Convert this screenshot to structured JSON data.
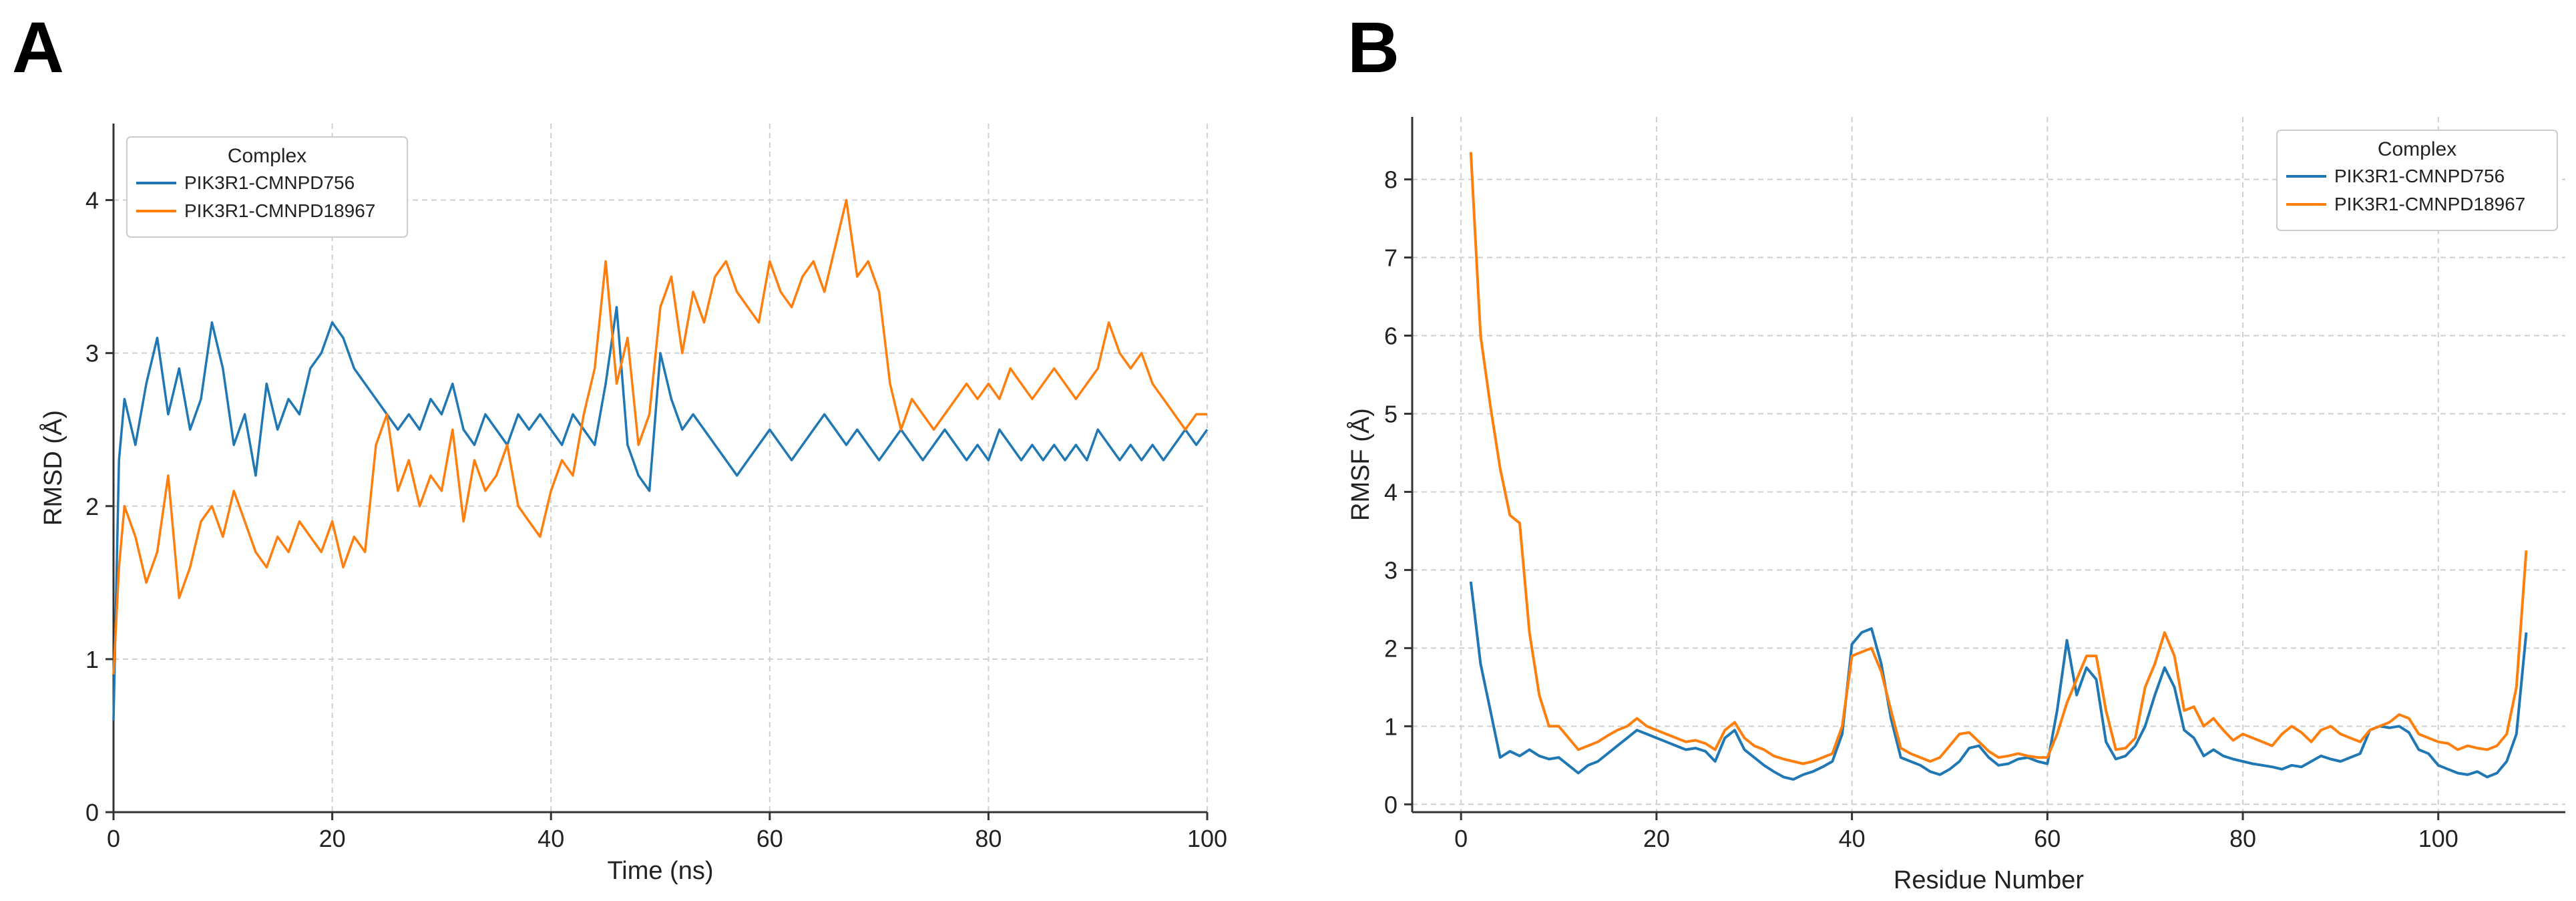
{
  "chart_data": [
    {
      "panel_label": "A",
      "type": "line",
      "title": "",
      "xlabel": "Time (ns)",
      "ylabel": "RMSD (Å)",
      "xlim": [
        0,
        100
      ],
      "ylim": [
        0,
        4.5
      ],
      "xticks": [
        0,
        20,
        40,
        60,
        80,
        100
      ],
      "yticks": [
        0,
        1,
        2,
        3,
        4
      ],
      "grid": true,
      "legend": {
        "title": "Complex",
        "placement": "top-left"
      },
      "series": [
        {
          "name": "PIK3R1-CMNPD756",
          "color": "#1f77b4",
          "x": [
            0,
            0.5,
            1,
            2,
            3,
            4,
            5,
            6,
            7,
            8,
            9,
            10,
            11,
            12,
            13,
            14,
            15,
            16,
            17,
            18,
            19,
            20,
            21,
            22,
            23,
            24,
            25,
            26,
            27,
            28,
            29,
            30,
            31,
            32,
            33,
            34,
            35,
            36,
            37,
            38,
            39,
            40,
            41,
            42,
            43,
            44,
            45,
            46,
            47,
            48,
            49,
            50,
            51,
            52,
            53,
            54,
            55,
            56,
            57,
            58,
            59,
            60,
            61,
            62,
            63,
            64,
            65,
            66,
            67,
            68,
            69,
            70,
            71,
            72,
            73,
            74,
            75,
            76,
            77,
            78,
            79,
            80,
            81,
            82,
            83,
            84,
            85,
            86,
            87,
            88,
            89,
            90,
            91,
            92,
            93,
            94,
            95,
            96,
            97,
            98,
            99,
            100
          ],
          "values": [
            0.6,
            2.3,
            2.7,
            2.4,
            2.8,
            3.1,
            2.6,
            2.9,
            2.5,
            2.7,
            3.2,
            2.9,
            2.4,
            2.6,
            2.2,
            2.8,
            2.5,
            2.7,
            2.6,
            2.9,
            3.0,
            3.2,
            3.1,
            2.9,
            2.8,
            2.7,
            2.6,
            2.5,
            2.6,
            2.5,
            2.7,
            2.6,
            2.8,
            2.5,
            2.4,
            2.6,
            2.5,
            2.4,
            2.6,
            2.5,
            2.6,
            2.5,
            2.4,
            2.6,
            2.5,
            2.4,
            2.8,
            3.3,
            2.4,
            2.2,
            2.1,
            3.0,
            2.7,
            2.5,
            2.6,
            2.5,
            2.4,
            2.3,
            2.2,
            2.3,
            2.4,
            2.5,
            2.4,
            2.3,
            2.4,
            2.5,
            2.6,
            2.5,
            2.4,
            2.5,
            2.4,
            2.3,
            2.4,
            2.5,
            2.4,
            2.3,
            2.4,
            2.5,
            2.4,
            2.3,
            2.4,
            2.3,
            2.5,
            2.4,
            2.3,
            2.4,
            2.3,
            2.4,
            2.3,
            2.4,
            2.3,
            2.5,
            2.4,
            2.3,
            2.4,
            2.3,
            2.4,
            2.3,
            2.4,
            2.5,
            2.4,
            2.5
          ]
        },
        {
          "name": "PIK3R1-CMNPD18967",
          "color": "#ff7f0e",
          "x": [
            0,
            0.5,
            1,
            2,
            3,
            4,
            5,
            6,
            7,
            8,
            9,
            10,
            11,
            12,
            13,
            14,
            15,
            16,
            17,
            18,
            19,
            20,
            21,
            22,
            23,
            24,
            25,
            26,
            27,
            28,
            29,
            30,
            31,
            32,
            33,
            34,
            35,
            36,
            37,
            38,
            39,
            40,
            41,
            42,
            43,
            44,
            45,
            46,
            47,
            48,
            49,
            50,
            51,
            52,
            53,
            54,
            55,
            56,
            57,
            58,
            59,
            60,
            61,
            62,
            63,
            64,
            65,
            66,
            67,
            68,
            69,
            70,
            71,
            72,
            73,
            74,
            75,
            76,
            77,
            78,
            79,
            80,
            81,
            82,
            83,
            84,
            85,
            86,
            87,
            88,
            89,
            90,
            91,
            92,
            93,
            94,
            95,
            96,
            97,
            98,
            99,
            100
          ],
          "values": [
            0.9,
            1.6,
            2.0,
            1.8,
            1.5,
            1.7,
            2.2,
            1.4,
            1.6,
            1.9,
            2.0,
            1.8,
            2.1,
            1.9,
            1.7,
            1.6,
            1.8,
            1.7,
            1.9,
            1.8,
            1.7,
            1.9,
            1.6,
            1.8,
            1.7,
            2.4,
            2.6,
            2.1,
            2.3,
            2.0,
            2.2,
            2.1,
            2.5,
            1.9,
            2.3,
            2.1,
            2.2,
            2.4,
            2.0,
            1.9,
            1.8,
            2.1,
            2.3,
            2.2,
            2.6,
            2.9,
            3.6,
            2.8,
            3.1,
            2.4,
            2.6,
            3.3,
            3.5,
            3.0,
            3.4,
            3.2,
            3.5,
            3.6,
            3.4,
            3.3,
            3.2,
            3.6,
            3.4,
            3.3,
            3.5,
            3.6,
            3.4,
            3.7,
            4.0,
            3.5,
            3.6,
            3.4,
            2.8,
            2.5,
            2.7,
            2.6,
            2.5,
            2.6,
            2.7,
            2.8,
            2.7,
            2.8,
            2.7,
            2.9,
            2.8,
            2.7,
            2.8,
            2.9,
            2.8,
            2.7,
            2.8,
            2.9,
            3.2,
            3.0,
            2.9,
            3.0,
            2.8,
            2.7,
            2.6,
            2.5,
            2.6,
            2.6
          ]
        }
      ]
    },
    {
      "panel_label": "B",
      "type": "line",
      "title": "",
      "xlabel": "Residue Number",
      "ylabel": "RMSF (Å)",
      "xlim": [
        -5,
        113
      ],
      "ylim": [
        -0.1,
        8.8
      ],
      "xticks": [
        0,
        20,
        40,
        60,
        80,
        100
      ],
      "yticks": [
        0,
        1,
        2,
        3,
        4,
        5,
        6,
        7,
        8
      ],
      "grid": true,
      "legend": {
        "title": "Complex",
        "placement": "top-right"
      },
      "series": [
        {
          "name": "PIK3R1-CMNPD756",
          "color": "#1f77b4",
          "x": [
            1,
            2,
            3,
            4,
            5,
            6,
            7,
            8,
            9,
            10,
            11,
            12,
            13,
            14,
            15,
            16,
            17,
            18,
            19,
            20,
            21,
            22,
            23,
            24,
            25,
            26,
            27,
            28,
            29,
            30,
            31,
            32,
            33,
            34,
            35,
            36,
            37,
            38,
            39,
            40,
            41,
            42,
            43,
            44,
            45,
            46,
            47,
            48,
            49,
            50,
            51,
            52,
            53,
            54,
            55,
            56,
            57,
            58,
            59,
            60,
            61,
            62,
            63,
            64,
            65,
            66,
            67,
            68,
            69,
            70,
            71,
            72,
            73,
            74,
            75,
            76,
            77,
            78,
            79,
            80,
            81,
            82,
            83,
            84,
            85,
            86,
            87,
            88,
            89,
            90,
            91,
            92,
            93,
            94,
            95,
            96,
            97,
            98,
            99,
            100,
            101,
            102,
            103,
            104,
            105,
            106,
            107,
            108,
            109
          ],
          "values": [
            2.85,
            1.8,
            1.2,
            0.6,
            0.68,
            0.62,
            0.7,
            0.62,
            0.58,
            0.6,
            0.5,
            0.4,
            0.5,
            0.55,
            0.65,
            0.75,
            0.85,
            0.95,
            0.9,
            0.85,
            0.8,
            0.75,
            0.7,
            0.72,
            0.68,
            0.55,
            0.85,
            0.95,
            0.7,
            0.6,
            0.5,
            0.42,
            0.35,
            0.32,
            0.38,
            0.42,
            0.48,
            0.55,
            0.9,
            2.05,
            2.2,
            2.25,
            1.8,
            1.1,
            0.6,
            0.55,
            0.5,
            0.42,
            0.38,
            0.45,
            0.55,
            0.72,
            0.75,
            0.6,
            0.5,
            0.52,
            0.58,
            0.6,
            0.55,
            0.52,
            1.2,
            2.1,
            1.4,
            1.75,
            1.6,
            0.8,
            0.58,
            0.62,
            0.75,
            1.0,
            1.4,
            1.75,
            1.5,
            0.95,
            0.85,
            0.62,
            0.7,
            0.62,
            0.58,
            0.55,
            0.52,
            0.5,
            0.48,
            0.45,
            0.5,
            0.48,
            0.55,
            0.62,
            0.58,
            0.55,
            0.6,
            0.65,
            0.95,
            1.0,
            0.98,
            1.0,
            0.92,
            0.7,
            0.65,
            0.5,
            0.45,
            0.4,
            0.38,
            0.42,
            0.35,
            0.4,
            0.55,
            0.9,
            2.2
          ]
        },
        {
          "name": "PIK3R1-CMNPD18967",
          "color": "#ff7f0e",
          "x": [
            1,
            2,
            3,
            4,
            5,
            6,
            7,
            8,
            9,
            10,
            11,
            12,
            13,
            14,
            15,
            16,
            17,
            18,
            19,
            20,
            21,
            22,
            23,
            24,
            25,
            26,
            27,
            28,
            29,
            30,
            31,
            32,
            33,
            34,
            35,
            36,
            37,
            38,
            39,
            40,
            41,
            42,
            43,
            44,
            45,
            46,
            47,
            48,
            49,
            50,
            51,
            52,
            53,
            54,
            55,
            56,
            57,
            58,
            59,
            60,
            61,
            62,
            63,
            64,
            65,
            66,
            67,
            68,
            69,
            70,
            71,
            72,
            73,
            74,
            75,
            76,
            77,
            78,
            79,
            80,
            81,
            82,
            83,
            84,
            85,
            86,
            87,
            88,
            89,
            90,
            91,
            92,
            93,
            94,
            95,
            96,
            97,
            98,
            99,
            100,
            101,
            102,
            103,
            104,
            105,
            106,
            107,
            108,
            109
          ],
          "values": [
            8.35,
            6.0,
            5.1,
            4.3,
            3.7,
            3.6,
            2.2,
            1.4,
            1.0,
            1.0,
            0.85,
            0.7,
            0.75,
            0.8,
            0.88,
            0.95,
            1.0,
            1.1,
            1.0,
            0.95,
            0.9,
            0.85,
            0.8,
            0.82,
            0.78,
            0.7,
            0.95,
            1.05,
            0.85,
            0.75,
            0.7,
            0.62,
            0.58,
            0.55,
            0.52,
            0.55,
            0.6,
            0.65,
            1.0,
            1.9,
            1.95,
            2.0,
            1.7,
            1.2,
            0.72,
            0.65,
            0.6,
            0.55,
            0.6,
            0.75,
            0.9,
            0.92,
            0.8,
            0.68,
            0.6,
            0.62,
            0.65,
            0.62,
            0.6,
            0.6,
            0.9,
            1.3,
            1.6,
            1.9,
            1.9,
            1.2,
            0.7,
            0.72,
            0.85,
            1.5,
            1.8,
            2.2,
            1.9,
            1.2,
            1.25,
            1.0,
            1.1,
            0.95,
            0.82,
            0.9,
            0.85,
            0.8,
            0.75,
            0.9,
            1.0,
            0.92,
            0.8,
            0.95,
            1.0,
            0.9,
            0.85,
            0.8,
            0.95,
            1.0,
            1.05,
            1.15,
            1.1,
            0.9,
            0.85,
            0.8,
            0.78,
            0.7,
            0.75,
            0.72,
            0.7,
            0.75,
            0.9,
            1.5,
            3.25
          ]
        }
      ]
    }
  ]
}
